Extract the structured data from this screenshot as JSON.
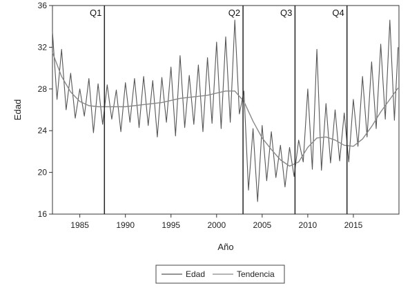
{
  "chart_data": {
    "type": "line",
    "title": "",
    "xlabel": "Año",
    "ylabel": "Edad",
    "xlim": [
      1982,
      2020
    ],
    "ylim": [
      16,
      36
    ],
    "yticks": [
      16,
      20,
      24,
      28,
      32,
      36
    ],
    "xticks": [
      1985,
      1990,
      1995,
      2000,
      2005,
      2010,
      2015
    ],
    "grid": false,
    "legend": {
      "position": "bottom-center",
      "entries": [
        "Edad",
        "Tendencia"
      ]
    },
    "vertical_markers": [
      {
        "label": "Q1",
        "x": 1987.7
      },
      {
        "label": "Q2",
        "x": 2002.9
      },
      {
        "label": "Q3",
        "x": 2008.6
      },
      {
        "label": "Q4",
        "x": 2014.3
      }
    ],
    "series": [
      {
        "name": "Edad",
        "color": "#555555",
        "x": [
          1982.0,
          1982.5,
          1983.0,
          1983.5,
          1984.0,
          1984.5,
          1985.0,
          1985.5,
          1986.0,
          1986.5,
          1987.0,
          1987.5,
          1988.0,
          1988.5,
          1989.0,
          1989.5,
          1990.0,
          1990.5,
          1991.0,
          1991.5,
          1992.0,
          1992.5,
          1993.0,
          1993.5,
          1994.0,
          1994.5,
          1995.0,
          1995.5,
          1996.0,
          1996.5,
          1997.0,
          1997.5,
          1998.0,
          1998.5,
          1999.0,
          1999.5,
          2000.0,
          2000.5,
          2001.0,
          2001.5,
          2002.0,
          2002.5,
          2003.0,
          2003.5,
          2004.0,
          2004.5,
          2005.0,
          2005.5,
          2006.0,
          2006.5,
          2007.0,
          2007.5,
          2008.0,
          2008.5,
          2009.0,
          2009.5,
          2010.0,
          2010.5,
          2011.0,
          2011.5,
          2012.0,
          2012.5,
          2013.0,
          2013.5,
          2014.0,
          2014.5,
          2015.0,
          2015.5,
          2016.0,
          2016.5,
          2017.0,
          2017.5,
          2018.0,
          2018.5,
          2019.0,
          2019.5,
          2019.9
        ],
        "values": [
          33.5,
          27.0,
          31.8,
          26.0,
          29.5,
          25.2,
          28.0,
          25.4,
          29.0,
          23.8,
          28.5,
          24.6,
          28.4,
          25.1,
          27.9,
          23.9,
          28.6,
          24.8,
          29.0,
          24.3,
          29.2,
          24.5,
          28.8,
          23.4,
          29.1,
          24.8,
          30.1,
          23.5,
          31.2,
          24.3,
          29.3,
          24.6,
          30.3,
          23.9,
          31.0,
          24.7,
          32.5,
          24.2,
          33.0,
          24.8,
          34.6,
          25.6,
          27.8,
          18.3,
          24.2,
          17.2,
          24.5,
          19.2,
          23.9,
          19.5,
          22.6,
          18.6,
          22.4,
          19.6,
          23.1,
          21.0,
          28.0,
          20.3,
          31.8,
          20.2,
          26.6,
          20.9,
          26.0,
          21.1,
          25.7,
          21.0,
          27.0,
          22.5,
          29.2,
          23.4,
          30.6,
          24.2,
          32.3,
          25.1,
          34.6,
          25.0,
          32.0
        ]
      },
      {
        "name": "Tendencia",
        "color": "#888888",
        "x": [
          1982.0,
          1983.0,
          1984.0,
          1985.0,
          1986.0,
          1987.0,
          1988.0,
          1989.0,
          1990.0,
          1991.0,
          1992.0,
          1993.0,
          1994.0,
          1995.0,
          1996.0,
          1997.0,
          1998.0,
          1999.0,
          2000.0,
          2001.0,
          2002.0,
          2003.0,
          2004.0,
          2005.0,
          2006.0,
          2007.0,
          2008.0,
          2009.0,
          2010.0,
          2011.0,
          2012.0,
          2013.0,
          2014.0,
          2015.0,
          2016.0,
          2017.0,
          2018.0,
          2019.0,
          2019.9
        ],
        "values": [
          31.5,
          29.2,
          27.7,
          26.8,
          26.4,
          26.3,
          26.3,
          26.3,
          26.3,
          26.4,
          26.5,
          26.6,
          26.7,
          26.9,
          27.1,
          27.2,
          27.3,
          27.4,
          27.6,
          27.8,
          27.8,
          26.8,
          24.9,
          23.3,
          22.2,
          21.2,
          20.6,
          21.0,
          22.4,
          23.3,
          23.4,
          23.1,
          22.6,
          22.5,
          23.2,
          24.4,
          25.8,
          27.0,
          28.1
        ]
      }
    ]
  }
}
